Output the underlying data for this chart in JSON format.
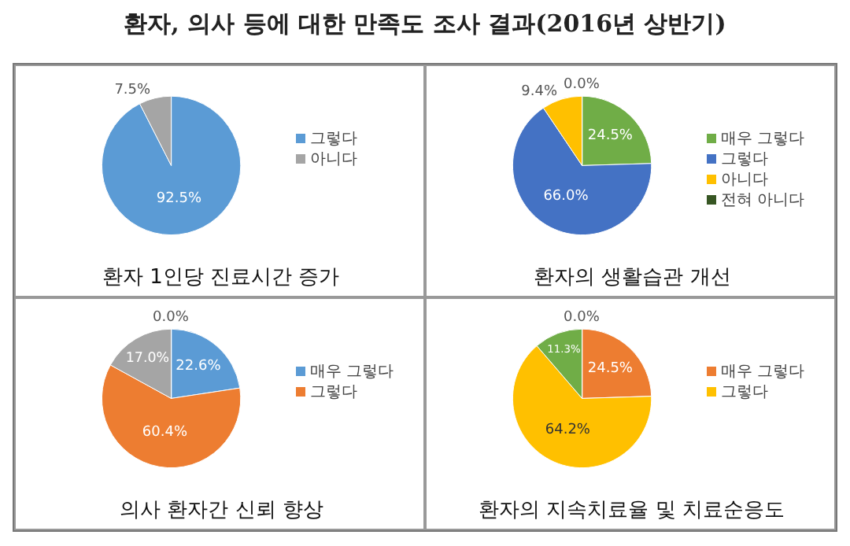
{
  "chart_data": [
    {
      "type": "pie",
      "title": "환자, 의사 등에 대한 만족도 조사 결과(2016년 상반기)",
      "xlabel": "환자 1인당 진료시간 증가",
      "categories": [
        "그렇다",
        "아니다"
      ],
      "values": [
        92.5,
        7.5
      ],
      "colors": [
        "#5b9bd5",
        "#a5a5a5"
      ],
      "value_labels": [
        "92.5%",
        "7.5%"
      ],
      "legend": "right"
    },
    {
      "type": "pie",
      "xlabel": "환자의 생활습관 개선",
      "categories": [
        "매우 그렇다",
        "그렇다",
        "아니다",
        "전혀 아니다"
      ],
      "values": [
        24.5,
        66.0,
        9.4,
        0.0
      ],
      "colors": [
        "#70ad47",
        "#4472c4",
        "#ffc000",
        "#375623"
      ],
      "value_labels": [
        "24.5%",
        "66.0%",
        "9.4%",
        "0.0%"
      ],
      "legend": "right"
    },
    {
      "type": "pie",
      "xlabel": "의사 환자간 신뢰 향상",
      "categories": [
        "매우 그렇다",
        "그렇다",
        null,
        null
      ],
      "values": [
        22.6,
        60.4,
        17.0,
        0.0
      ],
      "colors": [
        "#5b9bd5",
        "#ed7d31",
        "#a5a5a5",
        "#ffc000"
      ],
      "value_labels": [
        "22.6%",
        "60.4%",
        "17.0%",
        "0.0%"
      ],
      "legend": "right"
    },
    {
      "type": "pie",
      "xlabel": "환자의 지속치료율 및 치료순응도",
      "categories": [
        "매우 그렇다",
        "그렇다",
        null,
        null
      ],
      "values": [
        24.5,
        64.2,
        11.3,
        0.0
      ],
      "colors": [
        "#ed7d31",
        "#ffc000",
        "#70ad47",
        "#5b9bd5"
      ],
      "value_labels": [
        "24.5%",
        "64.2%",
        "11.3%",
        "0.0%"
      ],
      "legend": "right"
    }
  ]
}
